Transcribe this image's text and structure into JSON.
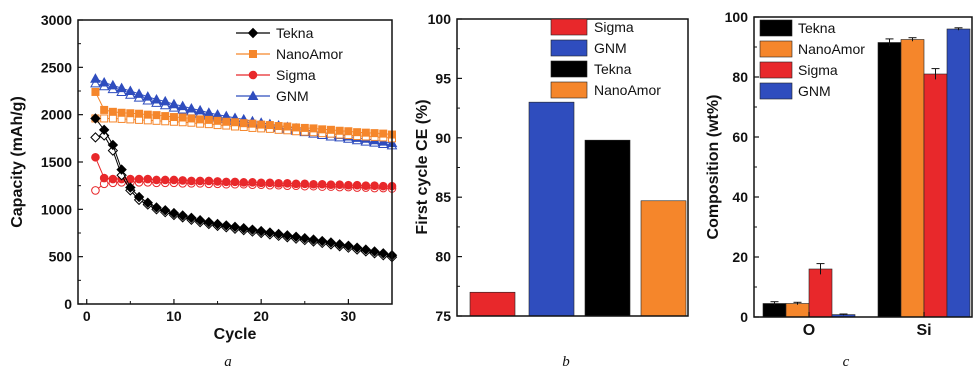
{
  "colors": {
    "Tekna": "#000000",
    "NanoAmor": "#f5862b",
    "Sigma": "#e8282b",
    "GNM": "#2f4dbe"
  },
  "chart_data": [
    {
      "type": "line",
      "panel_label": "a",
      "xlabel": "Cycle",
      "ylabel": "Capacity (mAh/g)",
      "xlim": [
        -1,
        35
      ],
      "ylim": [
        0,
        3000
      ],
      "xticks": [
        "0",
        "10",
        "20",
        "30"
      ],
      "yticks": [
        "0",
        "500",
        "1000",
        "1500",
        "2000",
        "2500",
        "3000"
      ],
      "legend_position": "top-right",
      "legend": [
        "Tekna",
        "NanoAmor",
        "Sigma",
        "GNM"
      ],
      "x": [
        1,
        2,
        3,
        4,
        5,
        6,
        7,
        8,
        9,
        10,
        11,
        12,
        13,
        14,
        15,
        16,
        17,
        18,
        19,
        20,
        21,
        22,
        23,
        24,
        25,
        26,
        27,
        28,
        29,
        30,
        31,
        32,
        33,
        34,
        35
      ],
      "series": [
        {
          "name": "Tekna",
          "marker": "diamond",
          "values": [
            1960,
            1840,
            1680,
            1420,
            1230,
            1130,
            1070,
            1020,
            990,
            960,
            935,
            910,
            885,
            865,
            845,
            830,
            815,
            800,
            785,
            770,
            755,
            740,
            725,
            710,
            695,
            680,
            665,
            650,
            630,
            615,
            595,
            575,
            555,
            535,
            515
          ],
          "values_open": [
            1760,
            1780,
            1620,
            1360,
            1200,
            1100,
            1050,
            1000,
            970,
            940,
            915,
            890,
            865,
            845,
            825,
            810,
            795,
            780,
            765,
            750,
            735,
            720,
            705,
            690,
            675,
            660,
            645,
            630,
            610,
            595,
            575,
            555,
            535,
            515,
            495
          ]
        },
        {
          "name": "NanoAmor",
          "marker": "square",
          "values": [
            2240,
            2050,
            2030,
            2020,
            2015,
            2010,
            2000,
            1995,
            1985,
            1975,
            1970,
            1960,
            1950,
            1945,
            1935,
            1925,
            1920,
            1910,
            1905,
            1895,
            1890,
            1880,
            1875,
            1865,
            1860,
            1855,
            1845,
            1840,
            1830,
            1825,
            1815,
            1810,
            1805,
            1800,
            1790
          ],
          "values_open": [
            1960,
            1960,
            1960,
            1955,
            1950,
            1945,
            1940,
            1935,
            1930,
            1925,
            1920,
            1915,
            1905,
            1900,
            1890,
            1885,
            1875,
            1870,
            1860,
            1855,
            1850,
            1840,
            1835,
            1825,
            1820,
            1815,
            1805,
            1800,
            1790,
            1785,
            1775,
            1770,
            1765,
            1760,
            1750
          ]
        },
        {
          "name": "Sigma",
          "marker": "circle",
          "values": [
            1550,
            1330,
            1320,
            1320,
            1320,
            1320,
            1320,
            1310,
            1310,
            1310,
            1305,
            1300,
            1300,
            1300,
            1295,
            1290,
            1290,
            1285,
            1285,
            1280,
            1280,
            1275,
            1275,
            1270,
            1270,
            1265,
            1265,
            1260,
            1260,
            1255,
            1255,
            1250,
            1250,
            1245,
            1245
          ],
          "values_open": [
            1200,
            1270,
            1280,
            1285,
            1285,
            1285,
            1285,
            1280,
            1280,
            1280,
            1275,
            1275,
            1275,
            1270,
            1270,
            1265,
            1265,
            1265,
            1260,
            1260,
            1255,
            1255,
            1250,
            1250,
            1245,
            1245,
            1240,
            1240,
            1235,
            1235,
            1230,
            1230,
            1225,
            1225,
            1220
          ]
        },
        {
          "name": "GNM",
          "marker": "triangle",
          "values": [
            2380,
            2340,
            2310,
            2280,
            2250,
            2220,
            2190,
            2160,
            2140,
            2110,
            2090,
            2065,
            2045,
            2020,
            2000,
            1985,
            1965,
            1950,
            1930,
            1915,
            1900,
            1885,
            1870,
            1855,
            1840,
            1825,
            1810,
            1800,
            1785,
            1770,
            1755,
            1745,
            1730,
            1715,
            1700
          ],
          "values_open": [
            2330,
            2300,
            2270,
            2240,
            2210,
            2180,
            2150,
            2125,
            2100,
            2075,
            2055,
            2035,
            2010,
            1990,
            1970,
            1955,
            1935,
            1920,
            1905,
            1890,
            1875,
            1860,
            1845,
            1830,
            1815,
            1800,
            1785,
            1770,
            1760,
            1745,
            1730,
            1715,
            1705,
            1690,
            1675
          ]
        }
      ]
    },
    {
      "type": "bar",
      "panel_label": "b",
      "ylabel": "First cycle CE (%)",
      "ylim": [
        75,
        100
      ],
      "yticks": [
        "75",
        "80",
        "85",
        "90",
        "95",
        "100"
      ],
      "legend_position": "top-right",
      "legend": [
        "Sigma",
        "GNM",
        "Tekna",
        "NanoAmor"
      ],
      "categories": [
        "Sigma",
        "GNM",
        "Tekna",
        "NanoAmor"
      ],
      "values": [
        77.0,
        93.0,
        89.8,
        84.7
      ]
    },
    {
      "type": "bar",
      "panel_label": "c",
      "ylabel": "Composition (wt%)",
      "ylim": [
        0,
        100
      ],
      "yticks": [
        "0",
        "20",
        "40",
        "60",
        "80",
        "100"
      ],
      "legend_position": "top-left",
      "categories": [
        "O",
        "Si"
      ],
      "series": [
        {
          "name": "Tekna",
          "values": [
            4.5,
            91.5
          ],
          "errors": [
            0.6,
            1.2
          ]
        },
        {
          "name": "NanoAmor",
          "values": [
            4.5,
            92.5
          ],
          "errors": [
            0.4,
            0.6
          ]
        },
        {
          "name": "Sigma",
          "values": [
            16.0,
            81.0
          ],
          "errors": [
            1.8,
            1.8
          ]
        },
        {
          "name": "GNM",
          "values": [
            0.8,
            96.0
          ],
          "errors": [
            0.2,
            0.4
          ]
        }
      ]
    }
  ]
}
